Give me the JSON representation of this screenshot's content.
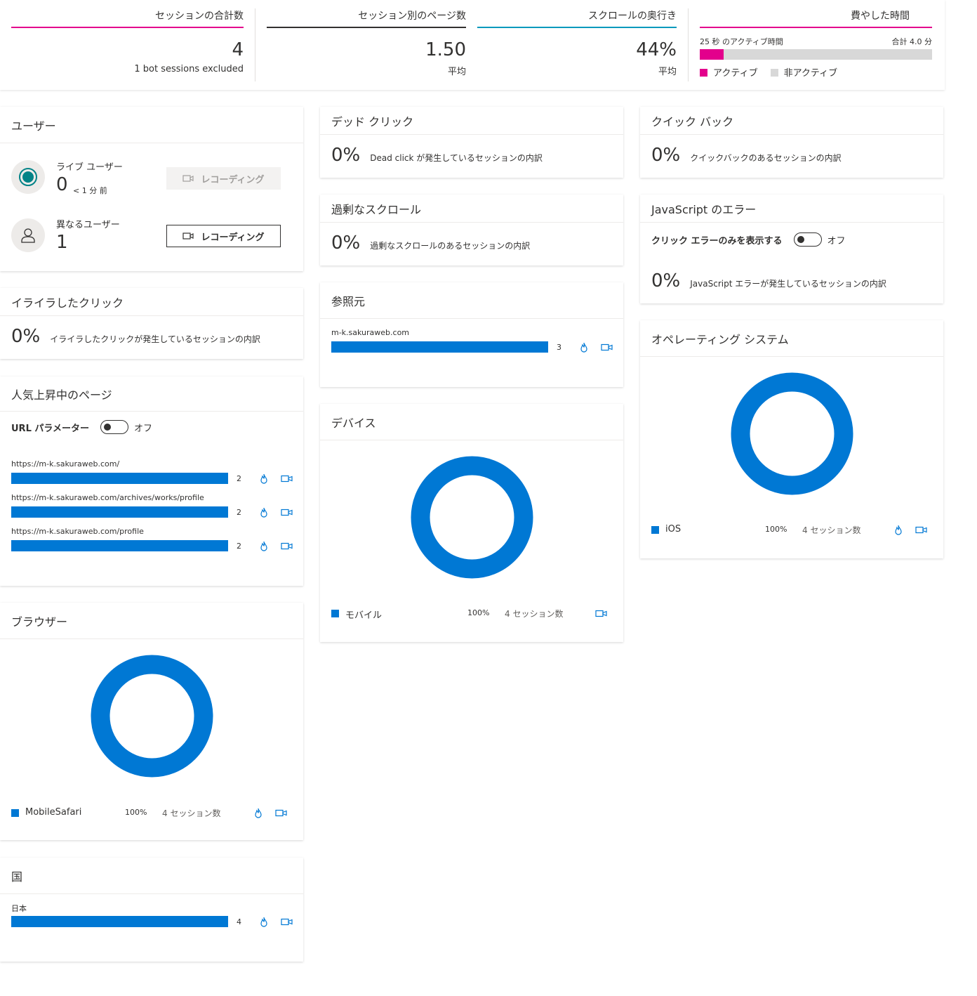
{
  "stats": {
    "total_sessions": {
      "title": "セッションの合計数",
      "value": "4",
      "sub": "1 bot sessions excluded",
      "color": "#e3008c"
    },
    "pages_per_session": {
      "title": "セッション別のページ数",
      "value": "1.50",
      "sub": "平均",
      "color": "#323130"
    },
    "scroll_depth": {
      "title": "スクロールの奥行き",
      "value": "44%",
      "sub": "平均",
      "color": "#0099bc"
    },
    "time_spent": {
      "title": "費やした時間",
      "active_label": "25 秒 のアクティブ時間",
      "total_label": "合計 4.0 分",
      "active_fraction": 0.104,
      "legend_active": "アクティブ",
      "legend_inactive": "非アクティブ",
      "color_active": "#e3008c",
      "color_inactive": "#d8d8d8"
    }
  },
  "users": {
    "title": "ユーザー",
    "live_label": "ライブ ユーザー",
    "live_value": "0",
    "live_time": "< 1 分 前",
    "distinct_label": "異なるユーザー",
    "distinct_value": "1",
    "record_label": "レコーディング"
  },
  "rage_clicks": {
    "title": "イライラしたクリック",
    "value": "0%",
    "desc": "イライラしたクリックが発生しているセッションの内訳"
  },
  "dead_clicks": {
    "title": "デッド クリック",
    "value": "0%",
    "desc": "Dead click が発生しているセッションの内訳"
  },
  "excessive_scroll": {
    "title": "過剰なスクロール",
    "value": "0%",
    "desc": "過剰なスクロールのあるセッションの内訳"
  },
  "quick_back": {
    "title": "クイック バック",
    "value": "0%",
    "desc": "クイックバックのあるセッションの内訳"
  },
  "js_errors": {
    "title": "JavaScript のエラー",
    "toggle_label": "クリック エラーのみを表示する",
    "toggle_state": "オフ",
    "value": "0%",
    "desc": "JavaScript エラーが発生しているセッションの内訳"
  },
  "popular_pages": {
    "title": "人気上昇中のページ",
    "toggle_label": "URL パラメーター",
    "toggle_state": "オフ",
    "max": 2,
    "items": [
      {
        "url": "https://m-k.sakuraweb.com/",
        "count": 2
      },
      {
        "url": "https://m-k.sakuraweb.com/archives/works/profile",
        "count": 2
      },
      {
        "url": "https://m-k.sakuraweb.com/profile",
        "count": 2
      }
    ]
  },
  "referrers": {
    "title": "参照元",
    "max": 3,
    "items": [
      {
        "name": "m-k.sakuraweb.com",
        "count": 3
      }
    ]
  },
  "devices": {
    "title": "デバイス",
    "legend": [
      {
        "name": "モバイル",
        "percent": "100%",
        "sessions": "4 セッション数",
        "value": 100
      }
    ]
  },
  "os": {
    "title": "オペレーティング システム",
    "legend": [
      {
        "name": "iOS",
        "percent": "100%",
        "sessions": "4 セッション数",
        "value": 100
      }
    ]
  },
  "browsers": {
    "title": "ブラウザー",
    "legend": [
      {
        "name": "MobileSafari",
        "percent": "100%",
        "sessions": "4 セッション数",
        "value": 100
      }
    ]
  },
  "countries": {
    "title": "国",
    "max": 4,
    "items": [
      {
        "name": "日本",
        "count": 4
      }
    ]
  },
  "icons": {
    "heatmap": "flame-icon",
    "recording": "video-camera-icon",
    "live": "live-dot-icon",
    "user": "user-icon"
  },
  "colors": {
    "accent": "#0078d4",
    "text": "#323130"
  }
}
